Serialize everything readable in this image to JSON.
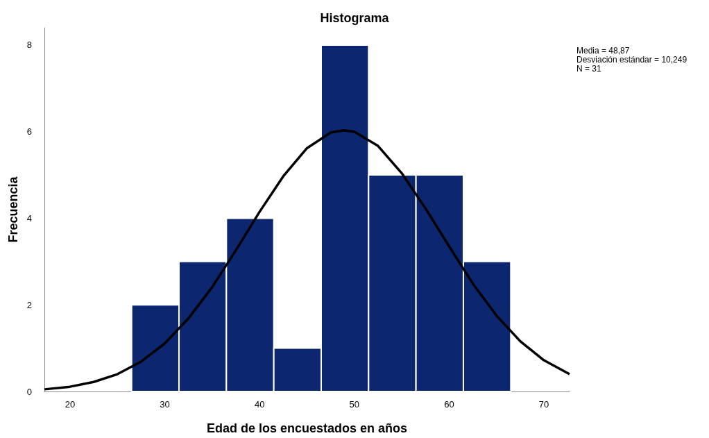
{
  "chart_data": {
    "type": "histogram",
    "title": "Histograma",
    "xlabel": "Edad de los encuestados en años",
    "ylabel": "Frecuencia",
    "annotations": [
      "Media = 48,87",
      "Desviación estándar = 10,249",
      "N = 31"
    ],
    "xlim": [
      17.3,
      72.7
    ],
    "xticks": [
      20,
      30,
      40,
      50,
      60,
      70
    ],
    "ylim": [
      0,
      8.4
    ],
    "yticks": [
      0,
      2,
      4,
      6,
      8
    ],
    "grid": false,
    "marker": "none",
    "line_style": "solid",
    "series": [
      {
        "color": "#0c2670",
        "bins": [
          26.5,
          31.5,
          36.5,
          41.5,
          46.5,
          51.5,
          56.5,
          61.5,
          66.5
        ],
        "values": [
          2,
          3,
          4,
          1,
          8,
          5,
          5,
          3
        ]
      },
      {
        "type": "line",
        "color": "#000000",
        "x": [
          17.3,
          20,
          22.5,
          25,
          27.5,
          30,
          32.5,
          35,
          37.5,
          40,
          42.5,
          45,
          47.5,
          48.87,
          50,
          52.5,
          55,
          57.5,
          60,
          62.5,
          65,
          67.5,
          70,
          72.7
        ],
        "values": [
          0.05,
          0.11,
          0.22,
          0.4,
          0.69,
          1.11,
          1.69,
          2.41,
          3.26,
          4.15,
          4.97,
          5.62,
          5.98,
          6.03,
          6.0,
          5.67,
          5.04,
          4.23,
          3.35,
          2.49,
          1.75,
          1.16,
          0.72,
          0.4
        ]
      }
    ]
  }
}
